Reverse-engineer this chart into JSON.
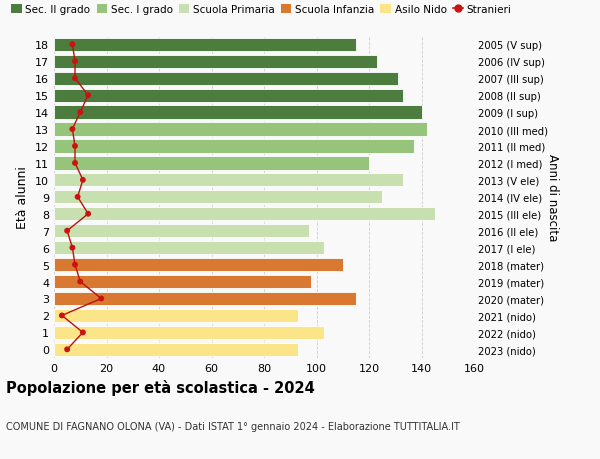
{
  "ages": [
    0,
    1,
    2,
    3,
    4,
    5,
    6,
    7,
    8,
    9,
    10,
    11,
    12,
    13,
    14,
    15,
    16,
    17,
    18
  ],
  "bar_values": [
    93,
    103,
    93,
    115,
    98,
    110,
    103,
    97,
    145,
    125,
    133,
    120,
    137,
    142,
    140,
    133,
    131,
    123,
    115
  ],
  "right_labels": [
    "2023 (nido)",
    "2022 (nido)",
    "2021 (nido)",
    "2020 (mater)",
    "2019 (mater)",
    "2018 (mater)",
    "2017 (I ele)",
    "2016 (II ele)",
    "2015 (III ele)",
    "2014 (IV ele)",
    "2013 (V ele)",
    "2012 (I med)",
    "2011 (II med)",
    "2010 (III med)",
    "2009 (I sup)",
    "2008 (II sup)",
    "2007 (III sup)",
    "2006 (IV sup)",
    "2005 (V sup)"
  ],
  "bar_colors": [
    "#fce588",
    "#fce588",
    "#fce588",
    "#d97830",
    "#d97830",
    "#d97830",
    "#c8e0b0",
    "#c8e0b0",
    "#c8e0b0",
    "#c8e0b0",
    "#c8e0b0",
    "#96c47a",
    "#96c47a",
    "#96c47a",
    "#4d7c3f",
    "#4d7c3f",
    "#4d7c3f",
    "#4d7c3f",
    "#4d7c3f"
  ],
  "stranieri_values": [
    5,
    11,
    3,
    18,
    10,
    8,
    7,
    5,
    13,
    9,
    11,
    8,
    8,
    7,
    10,
    13,
    8,
    8,
    7
  ],
  "legend_labels": [
    "Sec. II grado",
    "Sec. I grado",
    "Scuola Primaria",
    "Scuola Infanzia",
    "Asilo Nido",
    "Stranieri"
  ],
  "legend_colors": [
    "#4d7c3f",
    "#96c47a",
    "#c8e0b0",
    "#d97830",
    "#fce588",
    "#cc1111"
  ],
  "title": "Popolazione per età scolastica - 2024",
  "subtitle": "COMUNE DI FAGNANO OLONA (VA) - Dati ISTAT 1° gennaio 2024 - Elaborazione TUTTITALIA.IT",
  "ylabel": "Età alunni",
  "right_ylabel": "Anni di nascita",
  "xlim": [
    0,
    160
  ],
  "xticks": [
    0,
    20,
    40,
    60,
    80,
    100,
    120,
    140,
    160
  ],
  "bg_color": "#f9f9f9",
  "grid_color": "#cccccc"
}
